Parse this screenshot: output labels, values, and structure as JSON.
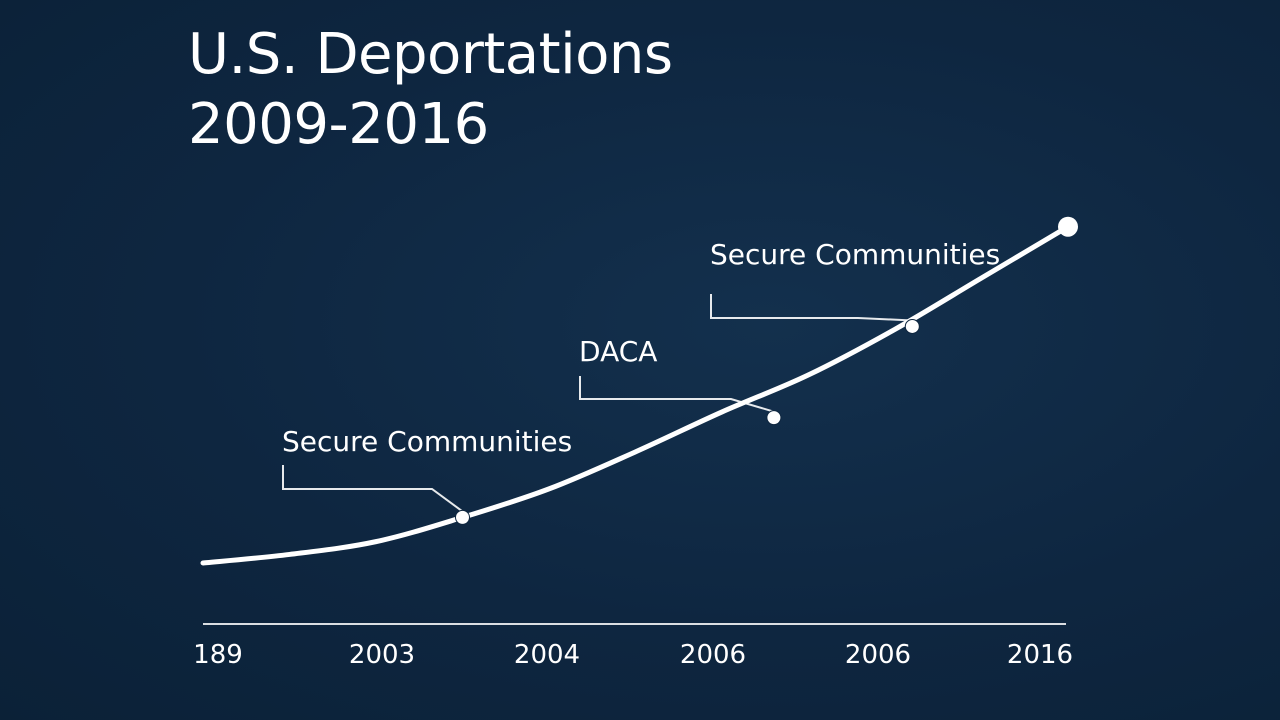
{
  "chart_data": {
    "type": "line",
    "title_lines": [
      "U.S. Deportations",
      "2009-2016"
    ],
    "xlabel": "",
    "ylabel": "",
    "x_tick_labels": [
      "189",
      "2003",
      "2004",
      "2006",
      "2006",
      "2016"
    ],
    "grid": false,
    "series": [
      {
        "values": [
          {
            "x": 0.0,
            "y": 0.0
          },
          {
            "x": 0.5,
            "y": 0.03
          },
          {
            "x": 1.0,
            "y": 0.075
          },
          {
            "x": 1.5,
            "y": 0.16
          },
          {
            "x": 2.0,
            "y": 0.26
          },
          {
            "x": 2.5,
            "y": 0.39
          },
          {
            "x": 3.0,
            "y": 0.53
          },
          {
            "x": 3.5,
            "y": 0.66
          },
          {
            "x": 4.0,
            "y": 0.82
          },
          {
            "x": 4.5,
            "y": 1.0
          },
          {
            "x": 5.0,
            "y": 1.18
          }
        ]
      }
    ],
    "endpoint": {
      "x": 5.0,
      "y": 1.18
    },
    "annotations": [
      {
        "label": "Secure Communities",
        "point": {
          "x": 1.5,
          "y": 0.16
        }
      },
      {
        "label": "DACA",
        "point": {
          "x": 3.3,
          "y": 0.51
        }
      },
      {
        "label": "Secure Communities",
        "point": {
          "x": 4.1,
          "y": 0.83
        }
      }
    ],
    "color": "#ffffff",
    "background": "#0f2740"
  }
}
